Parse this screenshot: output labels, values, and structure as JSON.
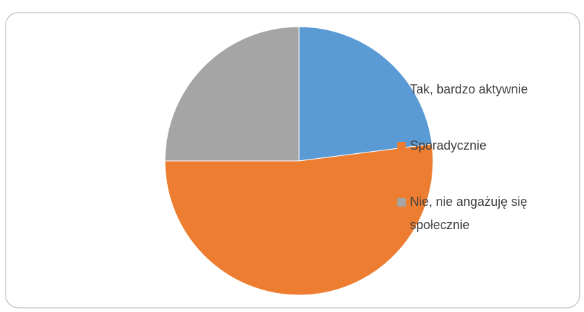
{
  "chart_data": {
    "type": "pie",
    "categories": [
      "Tak, bardzo aktywnie",
      "Sporadycznie",
      "Nie, nie angażuję się społecznie"
    ],
    "values": [
      23,
      52,
      25
    ],
    "colors": [
      "#5b9bd5",
      "#ed7d31",
      "#a5a5a5"
    ],
    "legend": "right"
  }
}
